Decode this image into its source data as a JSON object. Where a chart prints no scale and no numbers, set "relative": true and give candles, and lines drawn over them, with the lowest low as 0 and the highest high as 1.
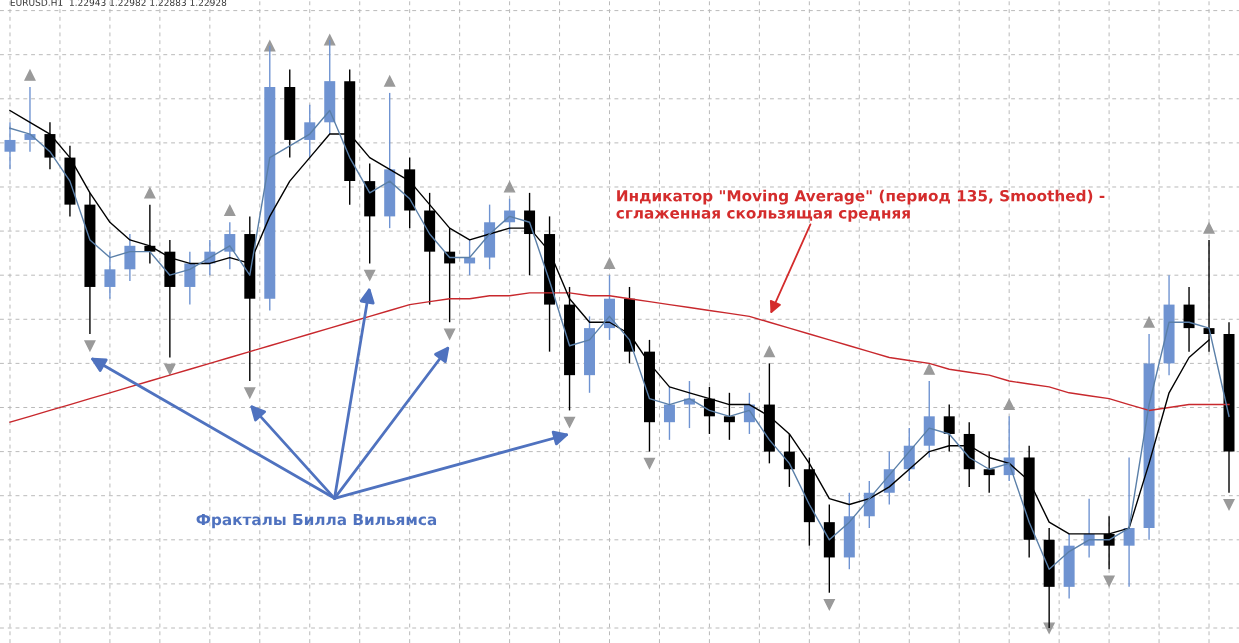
{
  "chart_data": {
    "type": "candlestick",
    "relative": true,
    "title": "EURUSD.H1  1.22943 1.22982 1.22883 1.22928",
    "categories": [
      null,
      null,
      null,
      null,
      null,
      null,
      null,
      null,
      null,
      null,
      null,
      null,
      null,
      null,
      null,
      null,
      null,
      null,
      null,
      null,
      null,
      null,
      null,
      null,
      null,
      null,
      null,
      null,
      null,
      null,
      null,
      null,
      null,
      null,
      null,
      null,
      null,
      null,
      null,
      null,
      null,
      null,
      null,
      null,
      null,
      null,
      null,
      null,
      null,
      null,
      null,
      null,
      null,
      null,
      null,
      null,
      null,
      null,
      null,
      null,
      null,
      null
    ],
    "colors": [
      "#6f93d1",
      "#6f93d1",
      "#000000",
      "#000000",
      "#000000",
      "#6f93d1",
      "#6f93d1",
      "#000000",
      "#000000",
      "#6f93d1",
      "#6f93d1",
      "#6f93d1",
      "#000000",
      "#6f93d1",
      "#000000",
      "#6f93d1",
      "#6f93d1",
      "#000000",
      "#000000",
      "#6f93d1",
      "#000000",
      "#000000",
      "#000000",
      "#6f93d1",
      "#6f93d1",
      "#6f93d1",
      "#000000",
      "#000000",
      "#000000",
      "#6f93d1",
      "#6f93d1",
      "#000000",
      "#000000",
      "#6f93d1",
      "#6f93d1",
      "#000000",
      "#000000",
      "#6f93d1",
      "#000000",
      "#000000",
      "#000000",
      "#000000",
      "#6f93d1",
      "#6f93d1",
      "#6f93d1",
      "#6f93d1",
      "#6f93d1",
      "#000000",
      "#000000",
      "#000000",
      "#6f93d1",
      "#000000",
      "#000000",
      "#6f93d1",
      "#6f93d1",
      "#000000",
      "#6f93d1",
      "#6f93d1",
      "#6f93d1",
      "#000000",
      "#000000",
      "#000000"
    ],
    "ohlc": [
      [
        0.81,
        0.86,
        0.78,
        0.83
      ],
      [
        0.83,
        0.92,
        0.81,
        0.84
      ],
      [
        0.84,
        0.86,
        0.78,
        0.8
      ],
      [
        0.8,
        0.82,
        0.7,
        0.72
      ],
      [
        0.72,
        0.74,
        0.5,
        0.58
      ],
      [
        0.58,
        0.64,
        0.56,
        0.61
      ],
      [
        0.61,
        0.67,
        0.59,
        0.65
      ],
      [
        0.65,
        0.72,
        0.62,
        0.64
      ],
      [
        0.64,
        0.66,
        0.46,
        0.58
      ],
      [
        0.58,
        0.64,
        0.55,
        0.62
      ],
      [
        0.62,
        0.66,
        0.6,
        0.64
      ],
      [
        0.64,
        0.69,
        0.61,
        0.67
      ],
      [
        0.67,
        0.7,
        0.42,
        0.56
      ],
      [
        0.56,
        0.99,
        0.54,
        0.92
      ],
      [
        0.92,
        0.95,
        0.8,
        0.83
      ],
      [
        0.83,
        0.89,
        0.8,
        0.86
      ],
      [
        0.86,
        1.0,
        0.84,
        0.93
      ],
      [
        0.93,
        0.95,
        0.72,
        0.76
      ],
      [
        0.76,
        0.79,
        0.62,
        0.7
      ],
      [
        0.7,
        0.91,
        0.68,
        0.78
      ],
      [
        0.78,
        0.8,
        0.68,
        0.71
      ],
      [
        0.71,
        0.74,
        0.55,
        0.64
      ],
      [
        0.64,
        0.68,
        0.52,
        0.62
      ],
      [
        0.62,
        0.66,
        0.6,
        0.63
      ],
      [
        0.63,
        0.72,
        0.61,
        0.69
      ],
      [
        0.69,
        0.73,
        0.67,
        0.71
      ],
      [
        0.71,
        0.74,
        0.6,
        0.67
      ],
      [
        0.67,
        0.7,
        0.47,
        0.55
      ],
      [
        0.55,
        0.58,
        0.37,
        0.43
      ],
      [
        0.43,
        0.53,
        0.4,
        0.51
      ],
      [
        0.51,
        0.6,
        0.49,
        0.56
      ],
      [
        0.56,
        0.58,
        0.45,
        0.47
      ],
      [
        0.47,
        0.49,
        0.3,
        0.35
      ],
      [
        0.35,
        0.41,
        0.32,
        0.38
      ],
      [
        0.38,
        0.42,
        0.34,
        0.39
      ],
      [
        0.39,
        0.41,
        0.33,
        0.36
      ],
      [
        0.36,
        0.4,
        0.32,
        0.35
      ],
      [
        0.35,
        0.4,
        0.33,
        0.38
      ],
      [
        0.38,
        0.45,
        0.28,
        0.3
      ],
      [
        0.3,
        0.33,
        0.24,
        0.27
      ],
      [
        0.27,
        0.29,
        0.14,
        0.18
      ],
      [
        0.18,
        0.21,
        0.06,
        0.12
      ],
      [
        0.12,
        0.23,
        0.1,
        0.19
      ],
      [
        0.19,
        0.25,
        0.17,
        0.23
      ],
      [
        0.23,
        0.3,
        0.21,
        0.27
      ],
      [
        0.27,
        0.34,
        0.25,
        0.31
      ],
      [
        0.31,
        0.42,
        0.29,
        0.36
      ],
      [
        0.36,
        0.38,
        0.3,
        0.33
      ],
      [
        0.33,
        0.35,
        0.24,
        0.27
      ],
      [
        0.27,
        0.3,
        0.23,
        0.26
      ],
      [
        0.26,
        0.36,
        0.25,
        0.29
      ],
      [
        0.29,
        0.31,
        0.12,
        0.15
      ],
      [
        0.15,
        0.17,
        0.0,
        0.07
      ],
      [
        0.07,
        0.16,
        0.05,
        0.14
      ],
      [
        0.14,
        0.22,
        0.12,
        0.16
      ],
      [
        0.16,
        0.19,
        0.1,
        0.14
      ],
      [
        0.14,
        0.29,
        0.07,
        0.17
      ],
      [
        0.17,
        0.5,
        0.15,
        0.45
      ],
      [
        0.45,
        0.6,
        0.43,
        0.55
      ],
      [
        0.55,
        0.58,
        0.47,
        0.51
      ],
      [
        0.51,
        0.66,
        0.47,
        0.5
      ],
      [
        0.5,
        0.52,
        0.23,
        0.3
      ]
    ],
    "series": [
      {
        "type": "line",
        "color": "#c8282d",
        "values": [
          0.35,
          0.36,
          0.37,
          0.38,
          0.39,
          0.4,
          0.41,
          0.42,
          0.43,
          0.44,
          0.45,
          0.46,
          0.47,
          0.48,
          0.49,
          0.5,
          0.51,
          0.52,
          0.53,
          0.54,
          0.55,
          0.555,
          0.56,
          0.56,
          0.565,
          0.565,
          0.57,
          0.57,
          0.57,
          0.565,
          0.565,
          0.56,
          0.555,
          0.55,
          0.545,
          0.54,
          0.535,
          0.53,
          0.52,
          0.51,
          0.5,
          0.49,
          0.48,
          0.47,
          0.46,
          0.455,
          0.45,
          0.44,
          0.435,
          0.43,
          0.42,
          0.415,
          0.41,
          0.4,
          0.395,
          0.39,
          0.38,
          0.37,
          0.375,
          0.38,
          0.38,
          0.38
        ]
      },
      {
        "type": "line",
        "color": "#000000",
        "values": [
          0.88,
          0.86,
          0.84,
          0.8,
          0.74,
          0.69,
          0.66,
          0.65,
          0.63,
          0.62,
          0.62,
          0.63,
          0.62,
          0.7,
          0.76,
          0.8,
          0.84,
          0.84,
          0.8,
          0.78,
          0.76,
          0.72,
          0.68,
          0.66,
          0.67,
          0.68,
          0.68,
          0.64,
          0.56,
          0.52,
          0.52,
          0.5,
          0.45,
          0.41,
          0.4,
          0.39,
          0.38,
          0.38,
          0.36,
          0.33,
          0.28,
          0.22,
          0.21,
          0.22,
          0.24,
          0.27,
          0.3,
          0.31,
          0.31,
          0.29,
          0.28,
          0.25,
          0.18,
          0.16,
          0.16,
          0.16,
          0.17,
          0.28,
          0.4,
          0.46,
          0.49,
          null
        ]
      },
      {
        "type": "line",
        "color": "#5a7fa8",
        "values": [
          0.85,
          0.84,
          0.81,
          0.76,
          0.66,
          0.63,
          0.64,
          0.64,
          0.6,
          0.61,
          0.63,
          0.65,
          0.6,
          0.8,
          0.82,
          0.84,
          0.88,
          0.8,
          0.74,
          0.76,
          0.73,
          0.67,
          0.63,
          0.63,
          0.67,
          0.7,
          0.69,
          0.59,
          0.48,
          0.49,
          0.53,
          0.49,
          0.39,
          0.38,
          0.39,
          0.37,
          0.36,
          0.37,
          0.32,
          0.28,
          0.21,
          0.15,
          0.18,
          0.22,
          0.26,
          0.3,
          0.34,
          0.33,
          0.29,
          0.27,
          0.28,
          0.18,
          0.1,
          0.13,
          0.15,
          0.15,
          0.17,
          0.38,
          0.52,
          0.52,
          0.51,
          0.36
        ]
      },
      {
        "type": "scatter",
        "marker": "triangle",
        "color": "#9a9a9a",
        "values": [
          null,
          0.94,
          null,
          null,
          null,
          null,
          null,
          0.74,
          null,
          null,
          null,
          0.71,
          null,
          0.99,
          null,
          null,
          1.0,
          null,
          null,
          0.93,
          null,
          null,
          null,
          null,
          null,
          0.75,
          null,
          null,
          null,
          null,
          0.62,
          null,
          null,
          null,
          null,
          null,
          null,
          null,
          0.47,
          null,
          null,
          null,
          null,
          null,
          null,
          null,
          0.44,
          null,
          null,
          null,
          0.38,
          null,
          null,
          null,
          null,
          null,
          null,
          0.52,
          null,
          null,
          0.68,
          null
        ]
      },
      {
        "type": "scatter",
        "marker": "triangle",
        "color": "#9a9a9a",
        "values": [
          null,
          null,
          null,
          null,
          null,
          null,
          null,
          null,
          0.44,
          null,
          null,
          null,
          null,
          null,
          null,
          null,
          null,
          null,
          null,
          null,
          null,
          null,
          null,
          null,
          null,
          null,
          null,
          null,
          null,
          null,
          null,
          null,
          0.28,
          null,
          null,
          null,
          null,
          null,
          null,
          null,
          null,
          0.04,
          null,
          null,
          null,
          null,
          null,
          null,
          null,
          null,
          null,
          null,
          0.0,
          null,
          null,
          0.08,
          null,
          null,
          null,
          null,
          null,
          0.21
        ]
      },
      {
        "type": "scatter",
        "marker": "triangle",
        "color": "#9a9a9a",
        "values": [
          null,
          null,
          null,
          null,
          0.48,
          null,
          null,
          null,
          null,
          null,
          null,
          null,
          0.4,
          null,
          null,
          null,
          null,
          null,
          0.6,
          null,
          null,
          null,
          0.5,
          null,
          null,
          null,
          null,
          null,
          0.35,
          null,
          null,
          null,
          null,
          null,
          null,
          null,
          null,
          null,
          null,
          null,
          null,
          null,
          null,
          null,
          null,
          null,
          null,
          null,
          null,
          null,
          null,
          null,
          null,
          null,
          null,
          null,
          null,
          null,
          null,
          null,
          null,
          null
        ]
      }
    ],
    "grid": true,
    "annotations": [
      "Индикатор \"Moving Average\" (период 135, Smoothed) -\nсглаженная скользящая средняя",
      "Фракталы Билла Вильямса"
    ]
  }
}
